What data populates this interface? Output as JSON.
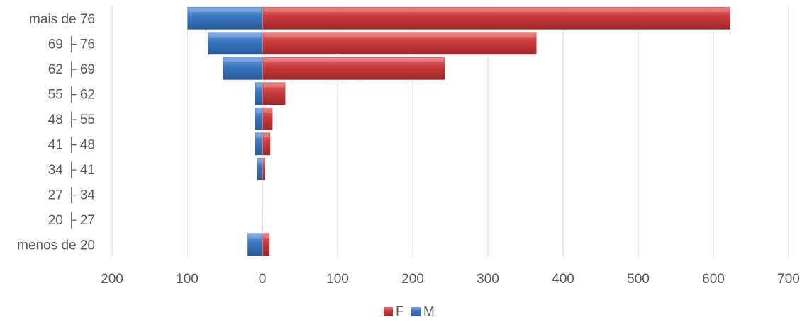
{
  "chart_data": {
    "type": "bar",
    "orientation": "horizontal",
    "stacking": "diverging",
    "categories": [
      "menos de 20",
      "20 ├ 27",
      "27 ├ 34",
      "34 ├ 41",
      "41 ├ 48",
      "48 ├ 55",
      "55 ├ 62",
      "62 ├ 69",
      "69 ├ 76",
      "mais de 76"
    ],
    "series": [
      {
        "name": "F",
        "color": "#c0393b",
        "values": [
          10,
          0,
          0,
          4,
          11,
          14,
          31,
          243,
          365,
          623
        ]
      },
      {
        "name": "M",
        "color": "#3a74bf",
        "values": [
          -20,
          -1,
          0,
          -7,
          -10,
          -10,
          -10,
          -53,
          -73,
          -100
        ]
      }
    ],
    "xlim": [
      -200,
      700
    ],
    "xticks": [
      -200,
      -100,
      0,
      100,
      200,
      300,
      400,
      500,
      600,
      700
    ],
    "xtick_labels": [
      "200",
      "100",
      "0",
      "100",
      "200",
      "300",
      "400",
      "500",
      "600",
      "700"
    ],
    "grid": true,
    "legend_position": "bottom",
    "legend": [
      "F",
      "M"
    ]
  }
}
